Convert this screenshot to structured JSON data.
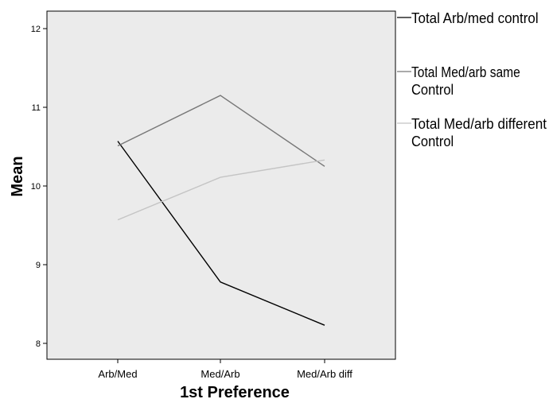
{
  "chart_data": {
    "type": "line",
    "xlabel": "1st Preference",
    "ylabel": "Mean",
    "categories": [
      "Arb/Med",
      "Med/Arb",
      "Med/Arb diff"
    ],
    "ylim": [
      7.8,
      12.2
    ],
    "yticks": [
      8,
      9,
      10,
      11,
      12
    ],
    "grid": false,
    "legend_position": "right",
    "series": [
      {
        "name": "Total Arb/med control",
        "legend_lines": [
          "Total Arb/med control"
        ],
        "color": "#000000",
        "values": [
          10.57,
          8.78,
          8.23
        ]
      },
      {
        "name": "Total Med/arb same Control",
        "legend_lines": [
          "Total Med/arb same",
          "Control"
        ],
        "color": "#777777",
        "values": [
          10.51,
          11.15,
          10.25
        ]
      },
      {
        "name": "Total Med/arb different Control",
        "legend_lines": [
          "Total Med/arb different",
          "Control"
        ],
        "color": "#c4c4c4",
        "values": [
          9.57,
          10.11,
          10.33
        ]
      }
    ]
  }
}
